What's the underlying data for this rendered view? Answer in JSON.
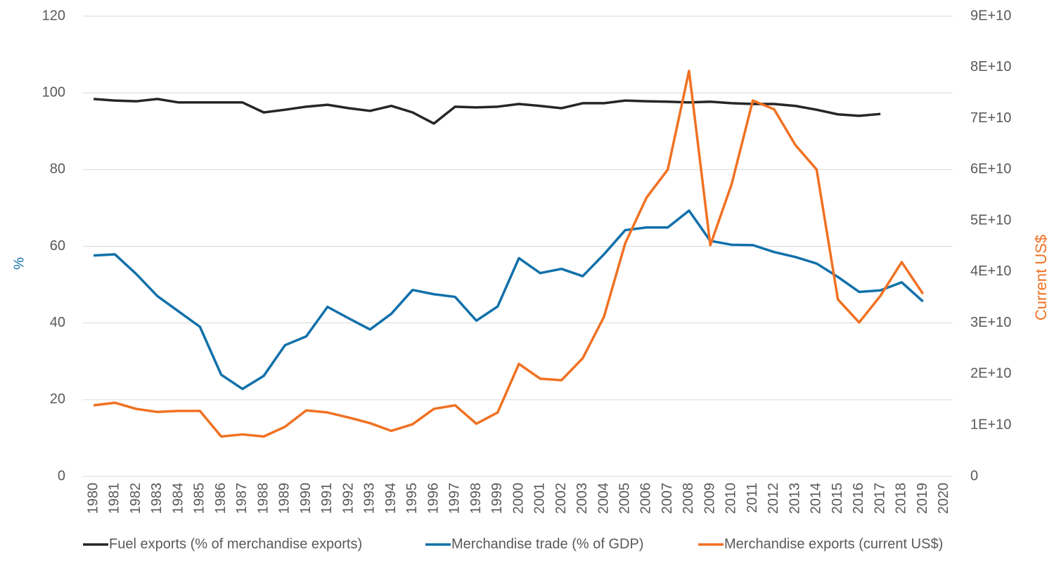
{
  "chart_data": {
    "type": "line",
    "y_label": "%",
    "y2_label": "Current US$",
    "categories": [
      "1980",
      "1981",
      "1982",
      "1983",
      "1984",
      "1985",
      "1986",
      "1987",
      "1988",
      "1989",
      "1990",
      "1991",
      "1992",
      "1993",
      "1994",
      "1995",
      "1996",
      "1997",
      "1998",
      "1999",
      "2000",
      "2001",
      "2002",
      "2003",
      "2004",
      "2005",
      "2006",
      "2007",
      "2008",
      "2009",
      "2010",
      "2011",
      "2012",
      "2013",
      "2014",
      "2015",
      "2016",
      "2017",
      "2018",
      "2019",
      "2020"
    ],
    "ylim": [
      0,
      120
    ],
    "yticks": [
      0,
      20,
      40,
      60,
      80,
      100,
      120
    ],
    "y2lim": [
      0,
      90000000000
    ],
    "y2ticks": [
      0,
      {
        "value": 10000000000,
        "label": "1E+10"
      },
      {
        "value": 20000000000,
        "label": "2E+10"
      },
      {
        "value": 30000000000,
        "label": "3E+10"
      },
      {
        "value": 40000000000,
        "label": "4E+10"
      },
      {
        "value": 50000000000,
        "label": "5E+10"
      },
      {
        "value": 60000000000,
        "label": "6E+10"
      },
      {
        "value": 70000000000,
        "label": "7E+10"
      },
      {
        "value": 80000000000,
        "label": "8E+10"
      },
      {
        "value": 90000000000,
        "label": "9E+10"
      }
    ],
    "grid": true,
    "legend": "bottom",
    "series": [
      {
        "name": "Fuel exports (% of merchandise exports)",
        "color": "#262626",
        "values": [
          98.4,
          98,
          97.8,
          98.4,
          97.5,
          97.5,
          97.5,
          97.5,
          94.9,
          95.6,
          96.4,
          96.9,
          96,
          95.3,
          96.6,
          94.9,
          92,
          96.4,
          96.2,
          96.4,
          97.1,
          96.6,
          96,
          97.3,
          97.3,
          98,
          97.8,
          97.7,
          97.5,
          97.7,
          97.3,
          97.1,
          97.1,
          96.6,
          95.6,
          94.4,
          94,
          94.5,
          null,
          null,
          null
        ]
      },
      {
        "name": "Merchandise trade (% of GDP)",
        "color": "#1170aa",
        "values": [
          57.6,
          57.9,
          52.8,
          47,
          43,
          39,
          26.5,
          22.8,
          26.2,
          34.2,
          36.5,
          44.2,
          41.2,
          38.3,
          42.4,
          48.6,
          47.5,
          46.8,
          40.6,
          44.3,
          56.9,
          53,
          54.1,
          52.2,
          57.9,
          64.2,
          64.9,
          64.9,
          69.3,
          61.4,
          60.4,
          60.3,
          58.5,
          57.2,
          55.5,
          52,
          48.1,
          48.5,
          50.6,
          45.6,
          null
        ]
      },
      {
        "name": "Merchandise exports (current US$)",
        "color": "#f07122",
        "axis": "y2",
        "values": [
          13900000000,
          14400000000,
          13200000000,
          12600000000,
          12800000000,
          12800000000,
          7800000000,
          8200000000,
          7800000000,
          9700000000,
          12900000000,
          12500000000,
          11500000000,
          10400000000,
          8900000000,
          10200000000,
          13200000000,
          13900000000,
          10300000000,
          12500000000,
          22000000000,
          19100000000,
          18800000000,
          23100000000,
          31200000000,
          45600000000,
          54500000000,
          60000000000,
          79300000000,
          45200000000,
          57100000000,
          73500000000,
          71800000000,
          64800000000,
          60000000000,
          34600000000,
          30100000000,
          35300000000,
          41900000000,
          35700000000,
          null
        ]
      }
    ]
  }
}
